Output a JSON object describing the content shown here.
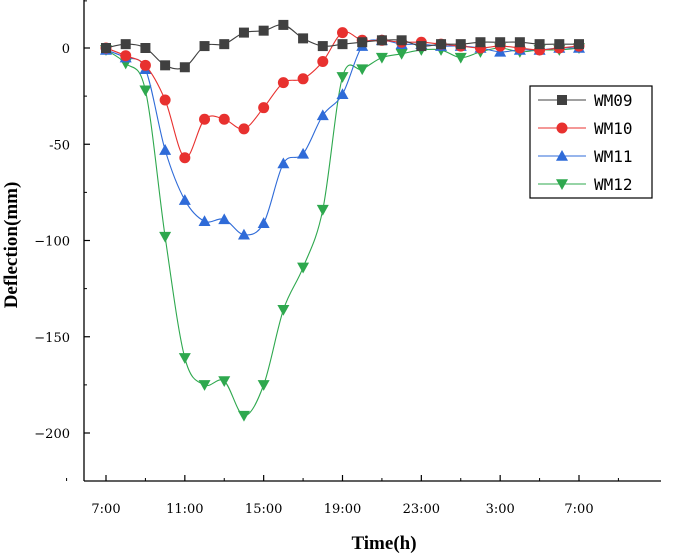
{
  "chart_data": {
    "type": "line",
    "xlabel": "Time(h)",
    "ylabel": "Deflection(mm)",
    "title": "",
    "xlim": [
      0,
      26
    ],
    "ylim": [
      -225,
      25
    ],
    "x_ticks": [
      {
        "value": 0,
        "label": "7:00"
      },
      {
        "value": 4,
        "label": "11:00"
      },
      {
        "value": 8,
        "label": "15:00"
      },
      {
        "value": 12,
        "label": "19:00"
      },
      {
        "value": 16,
        "label": "23:00"
      },
      {
        "value": 20,
        "label": "3:00"
      },
      {
        "value": 24,
        "label": "7:00"
      }
    ],
    "y_ticks": [
      {
        "value": 0,
        "label": "0"
      },
      {
        "value": -50,
        "label": "-50"
      },
      {
        "value": -100,
        "label": "−100"
      },
      {
        "value": -150,
        "label": "−150"
      },
      {
        "value": -200,
        "label": "−200"
      }
    ],
    "legend_position": "right",
    "x": [
      0,
      1,
      2,
      3,
      4,
      5,
      6,
      7,
      8,
      9,
      10,
      11,
      12,
      13,
      14,
      15,
      16,
      17,
      18,
      19,
      20,
      21,
      22,
      23,
      24
    ],
    "series": [
      {
        "name": "WM09",
        "color": "#404040",
        "marker": "square",
        "values": [
          0,
          2,
          0,
          -9,
          -10,
          1,
          2,
          8,
          9,
          12,
          5,
          1,
          2,
          3,
          4,
          4,
          1,
          2,
          2,
          3,
          3,
          3,
          2,
          2,
          2
        ]
      },
      {
        "name": "WM10",
        "color": "#e8312f",
        "marker": "circle",
        "values": [
          0,
          -4,
          -9,
          -27,
          -57,
          -37,
          -37,
          -42,
          -31,
          -18,
          -16,
          -7,
          8,
          4,
          4,
          3,
          3,
          2,
          1,
          0,
          1,
          0,
          -1,
          0,
          1
        ]
      },
      {
        "name": "WM11",
        "color": "#2f6bd8",
        "marker": "triangle-up",
        "values": [
          -1,
          -5,
          -11,
          -53,
          -79,
          -90,
          -89,
          -97,
          -91,
          -60,
          -55,
          -35,
          -24,
          1,
          4,
          2,
          2,
          1,
          1,
          0,
          -2,
          -1,
          -1,
          0,
          0
        ]
      },
      {
        "name": "WM12",
        "color": "#2ea84e",
        "marker": "triangle-down",
        "values": [
          -1,
          -8,
          -22,
          -98,
          -161,
          -175,
          -173,
          -191,
          -175,
          -136,
          -114,
          -84,
          -15,
          -11,
          -5,
          -3,
          -1,
          -1,
          -5,
          -2,
          0,
          -2,
          -1,
          -1,
          0
        ]
      }
    ]
  }
}
